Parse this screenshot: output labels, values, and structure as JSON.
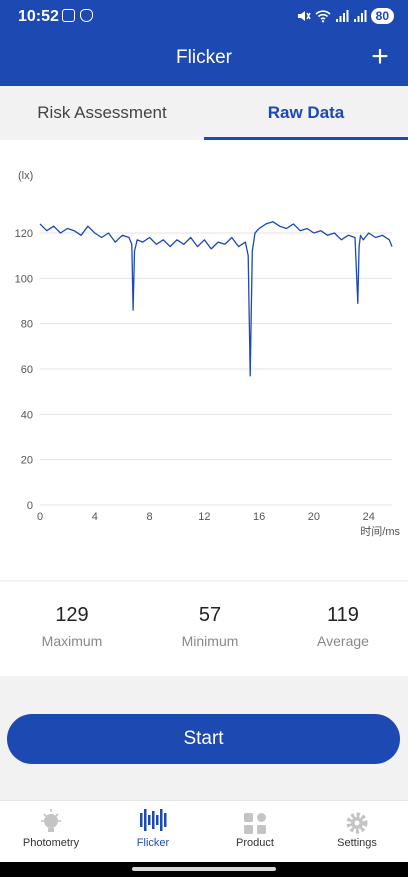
{
  "status": {
    "time": "10:52",
    "battery": "80"
  },
  "app": {
    "title": "Flicker",
    "add_label": "+"
  },
  "tabs": [
    {
      "label": "Risk Assessment"
    },
    {
      "label": "Raw Data"
    }
  ],
  "chart_data": {
    "type": "line",
    "title": "",
    "xlabel": "时间/ms",
    "ylabel": "(lx)",
    "xlim": [
      0,
      25.7
    ],
    "ylim": [
      0,
      120
    ],
    "xticks": [
      0,
      4,
      8,
      12,
      16,
      20,
      24
    ],
    "yticks": [
      0,
      20,
      40,
      60,
      80,
      100,
      120
    ],
    "grid": "horizontal",
    "series": [
      {
        "color": "#1d49b3",
        "x": [
          0,
          0.5,
          1,
          1.5,
          2,
          2.5,
          3,
          3.5,
          4,
          4.5,
          5,
          5.5,
          6,
          6.5,
          6.7,
          6.8,
          6.9,
          7.1,
          7.5,
          8,
          8.5,
          9,
          9.5,
          10,
          10.5,
          11,
          11.5,
          12,
          12.5,
          13,
          13.5,
          14,
          14.5,
          15,
          15.2,
          15.35,
          15.5,
          15.7,
          16,
          16.5,
          17,
          17.5,
          18,
          18.5,
          19,
          19.5,
          20,
          20.5,
          21,
          21.5,
          22,
          22.5,
          23,
          23.2,
          23.3,
          23.4,
          23.6,
          24,
          24.5,
          25,
          25.5,
          25.7
        ],
        "y": [
          124,
          121,
          123,
          120,
          122,
          121,
          119,
          123,
          120,
          118,
          120,
          116,
          119,
          118,
          115,
          86,
          112,
          117,
          116,
          118,
          115,
          117,
          114,
          117,
          115,
          118,
          114,
          117,
          113,
          116,
          115,
          118,
          114,
          116,
          110,
          57,
          112,
          120,
          122,
          124,
          125,
          123,
          122,
          124,
          121,
          122,
          120,
          121,
          119,
          120,
          117,
          119,
          118,
          89,
          114,
          119,
          117,
          120,
          118,
          119,
          117,
          114
        ]
      }
    ]
  },
  "stats": [
    {
      "value": "129",
      "label": "Maximum"
    },
    {
      "value": "57",
      "label": "Minimum"
    },
    {
      "value": "119",
      "label": "Average"
    }
  ],
  "start_label": "Start",
  "nav": [
    {
      "label": "Photometry",
      "icon": "bulb-icon"
    },
    {
      "label": "Flicker",
      "icon": "waveform-icon"
    },
    {
      "label": "Product",
      "icon": "grid-icon"
    },
    {
      "label": "Settings",
      "icon": "gear-icon"
    }
  ],
  "colors": {
    "primary": "#1d49b3",
    "inactive": "#bfbfbf"
  }
}
